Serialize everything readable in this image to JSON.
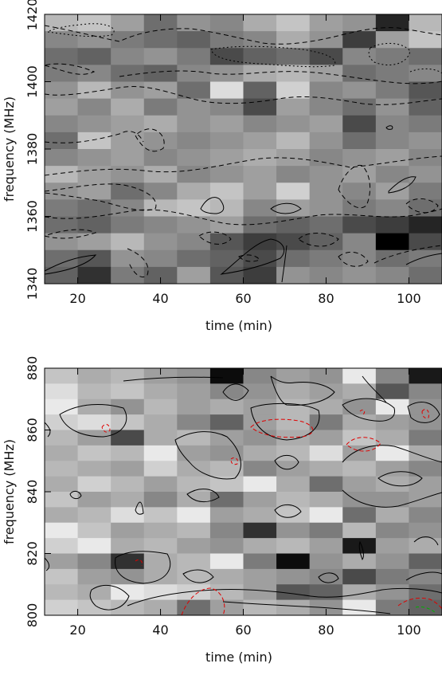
{
  "chart_data": [
    {
      "type": "heatmap",
      "xlabel": "time (min)",
      "ylabel": "frequency (MHz)",
      "xlim": [
        12,
        108
      ],
      "ylim": [
        1340,
        1420
      ],
      "x_ticks": [
        "20",
        "40",
        "60",
        "80",
        "100"
      ],
      "x_tick_values": [
        20,
        40,
        60,
        80,
        100
      ],
      "y_ticks": [
        "1340",
        "1360",
        "1380",
        "1400",
        "1420"
      ],
      "y_tick_values": [
        1340,
        1360,
        1380,
        1400,
        1420
      ],
      "cell_x_edges": [
        12,
        20,
        28,
        36,
        44,
        52,
        60,
        68,
        76,
        84,
        92,
        100,
        108
      ],
      "cell_y_edges": [
        1340,
        1345,
        1350,
        1355,
        1360,
        1365,
        1370,
        1375,
        1380,
        1385,
        1390,
        1395,
        1400,
        1405,
        1410,
        1415,
        1420
      ],
      "colorscale": "gray, darker = higher intensity",
      "values": [
        [
          0.25,
          0.2,
          0.35,
          0.55,
          0.4,
          0.45,
          0.3,
          0.2,
          0.35,
          0.4,
          0.85,
          0.25
        ],
        [
          0.45,
          0.4,
          0.5,
          0.55,
          0.6,
          0.5,
          0.45,
          0.3,
          0.4,
          0.75,
          0.35,
          0.2
        ],
        [
          0.55,
          0.6,
          0.45,
          0.4,
          0.5,
          0.7,
          0.6,
          0.55,
          0.7,
          0.45,
          0.5,
          0.55
        ],
        [
          0.5,
          0.45,
          0.55,
          0.6,
          0.45,
          0.4,
          0.3,
          0.25,
          0.35,
          0.55,
          0.5,
          0.45
        ],
        [
          0.4,
          0.25,
          0.4,
          0.35,
          0.55,
          0.1,
          0.6,
          0.15,
          0.45,
          0.4,
          0.5,
          0.65
        ],
        [
          0.35,
          0.45,
          0.3,
          0.5,
          0.4,
          0.45,
          0.7,
          0.35,
          0.45,
          0.55,
          0.4,
          0.6
        ],
        [
          0.45,
          0.4,
          0.35,
          0.3,
          0.4,
          0.35,
          0.45,
          0.4,
          0.35,
          0.7,
          0.45,
          0.5
        ],
        [
          0.55,
          0.2,
          0.35,
          0.4,
          0.45,
          0.4,
          0.35,
          0.25,
          0.4,
          0.55,
          0.45,
          0.4
        ],
        [
          0.45,
          0.4,
          0.35,
          0.45,
          0.4,
          0.35,
          0.3,
          0.35,
          0.45,
          0.4,
          0.35,
          0.45
        ],
        [
          0.25,
          0.35,
          0.4,
          0.3,
          0.45,
          0.4,
          0.35,
          0.45,
          0.4,
          0.35,
          0.45,
          0.4
        ],
        [
          0.4,
          0.35,
          0.55,
          0.45,
          0.3,
          0.2,
          0.35,
          0.15,
          0.4,
          0.45,
          0.35,
          0.5
        ],
        [
          0.5,
          0.55,
          0.45,
          0.25,
          0.2,
          0.25,
          0.45,
          0.35,
          0.4,
          0.5,
          0.45,
          0.55
        ],
        [
          0.55,
          0.6,
          0.5,
          0.45,
          0.4,
          0.35,
          0.55,
          0.6,
          0.55,
          0.7,
          0.75,
          0.85
        ],
        [
          0.4,
          0.35,
          0.25,
          0.4,
          0.45,
          0.65,
          0.75,
          0.7,
          0.6,
          0.45,
          1.0,
          0.7
        ],
        [
          0.55,
          0.65,
          0.4,
          0.45,
          0.55,
          0.6,
          0.7,
          0.55,
          0.5,
          0.45,
          0.55,
          0.5
        ],
        [
          0.6,
          0.8,
          0.5,
          0.6,
          0.35,
          0.65,
          0.75,
          0.4,
          0.45,
          0.4,
          0.45,
          0.55
        ]
      ]
    },
    {
      "type": "heatmap",
      "xlabel": "time (min)",
      "ylabel": "frequency (MHz)",
      "xlim": [
        12,
        108
      ],
      "ylim": [
        800,
        880
      ],
      "x_ticks": [
        "20",
        "40",
        "60",
        "80",
        "100"
      ],
      "x_tick_values": [
        20,
        40,
        60,
        80,
        100
      ],
      "y_ticks": [
        "800",
        "820",
        "840",
        "860",
        "880"
      ],
      "y_tick_values": [
        800,
        820,
        840,
        860,
        880
      ],
      "cell_x_edges": [
        12,
        20,
        28,
        36,
        44,
        52,
        60,
        68,
        76,
        84,
        92,
        100,
        108
      ],
      "cell_y_edges": [
        800,
        805,
        810,
        815,
        820,
        825,
        830,
        835,
        840,
        845,
        850,
        855,
        860,
        865,
        870,
        875,
        880
      ],
      "colorscale": "gray, darker = higher intensity",
      "values": [
        [
          0.2,
          0.3,
          0.25,
          0.35,
          0.4,
          0.95,
          0.45,
          0.35,
          0.4,
          0.05,
          0.45,
          0.9
        ],
        [
          0.1,
          0.25,
          0.2,
          0.3,
          0.35,
          0.45,
          0.4,
          0.3,
          0.35,
          0.3,
          0.65,
          0.45
        ],
        [
          0.05,
          0.3,
          0.4,
          0.25,
          0.35,
          0.3,
          0.35,
          0.25,
          0.3,
          0.4,
          0.05,
          0.4
        ],
        [
          0.15,
          0.1,
          0.2,
          0.3,
          0.45,
          0.6,
          0.35,
          0.25,
          0.5,
          0.3,
          0.35,
          0.4
        ],
        [
          0.25,
          0.35,
          0.7,
          0.3,
          0.25,
          0.35,
          0.4,
          0.3,
          0.35,
          0.2,
          0.3,
          0.5
        ],
        [
          0.3,
          0.2,
          0.25,
          0.05,
          0.35,
          0.4,
          0.3,
          0.25,
          0.1,
          0.35,
          0.05,
          0.3
        ],
        [
          0.25,
          0.3,
          0.35,
          0.15,
          0.3,
          0.25,
          0.45,
          0.35,
          0.3,
          0.25,
          0.35,
          0.45
        ],
        [
          0.3,
          0.15,
          0.25,
          0.35,
          0.25,
          0.2,
          0.05,
          0.3,
          0.55,
          0.35,
          0.3,
          0.35
        ],
        [
          0.2,
          0.35,
          0.3,
          0.45,
          0.3,
          0.55,
          0.35,
          0.25,
          0.3,
          0.4,
          0.4,
          0.35
        ],
        [
          0.3,
          0.25,
          0.1,
          0.2,
          0.05,
          0.35,
          0.3,
          0.2,
          0.05,
          0.55,
          0.3,
          0.45
        ],
        [
          0.05,
          0.2,
          0.35,
          0.3,
          0.25,
          0.45,
          0.8,
          0.4,
          0.5,
          0.25,
          0.45,
          0.4
        ],
        [
          0.15,
          0.05,
          0.3,
          0.25,
          0.35,
          0.4,
          0.3,
          0.25,
          0.35,
          0.9,
          0.35,
          0.3
        ],
        [
          0.35,
          0.45,
          0.8,
          0.3,
          0.25,
          0.05,
          0.5,
          0.95,
          0.4,
          0.3,
          0.4,
          0.6
        ],
        [
          0.2,
          0.35,
          0.4,
          0.3,
          0.25,
          0.3,
          0.35,
          0.4,
          0.45,
          0.7,
          0.5,
          0.45
        ],
        [
          0.25,
          0.3,
          0.05,
          0.1,
          0.15,
          0.25,
          0.35,
          0.65,
          0.6,
          0.3,
          0.4,
          0.55
        ],
        [
          0.15,
          0.2,
          0.25,
          0.3,
          0.55,
          0.35,
          0.25,
          0.3,
          0.4,
          0.05,
          0.5,
          0.6
        ]
      ]
    }
  ]
}
